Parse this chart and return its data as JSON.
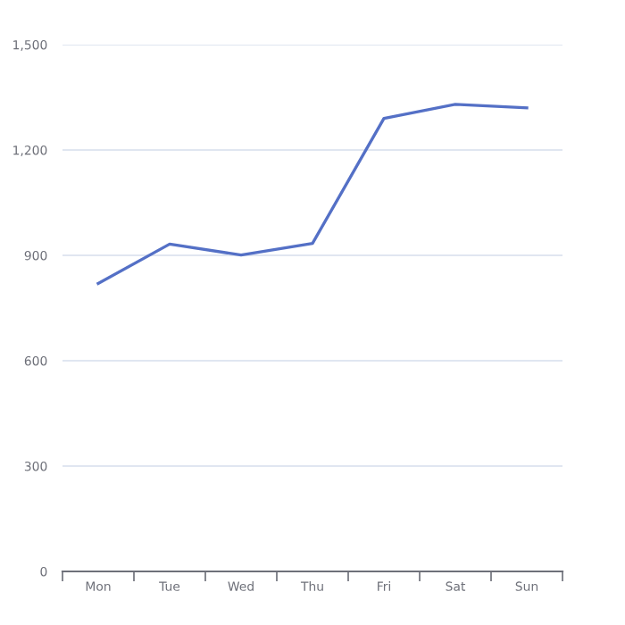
{
  "chart_data": {
    "type": "line",
    "categories": [
      "Mon",
      "Tue",
      "Wed",
      "Thu",
      "Fri",
      "Sat",
      "Sun"
    ],
    "series": [
      {
        "color": "#5470c6",
        "values": [
          820,
          932,
          901,
          934,
          1290,
          1330,
          1320
        ]
      }
    ],
    "ylim": [
      0,
      1500
    ],
    "yticks": [
      0,
      300,
      600,
      900,
      {
        "value": 1200,
        "label": "1,200"
      },
      {
        "value": 1500,
        "label": "1,500"
      }
    ],
    "grid": "y",
    "marker": "none",
    "line_style": "solid"
  }
}
